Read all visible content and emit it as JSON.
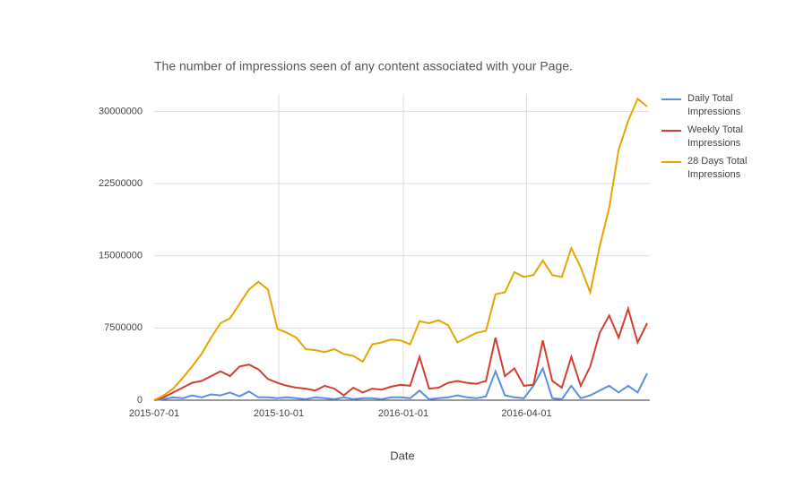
{
  "chart_data": {
    "type": "line",
    "title": "The number of impressions seen of any content associated with your Page.",
    "x_label": "Date",
    "x": [
      "2015-07-01",
      "2015-07-08",
      "2015-07-15",
      "2015-07-22",
      "2015-07-29",
      "2015-08-05",
      "2015-08-12",
      "2015-08-19",
      "2015-08-26",
      "2015-09-02",
      "2015-09-09",
      "2015-09-16",
      "2015-09-23",
      "2015-09-30",
      "2015-10-07",
      "2015-10-14",
      "2015-10-21",
      "2015-10-28",
      "2015-11-04",
      "2015-11-11",
      "2015-11-18",
      "2015-11-25",
      "2015-12-02",
      "2015-12-09",
      "2015-12-16",
      "2015-12-23",
      "2015-12-30",
      "2016-01-06",
      "2016-01-13",
      "2016-01-20",
      "2016-01-27",
      "2016-02-03",
      "2016-02-10",
      "2016-02-17",
      "2016-02-24",
      "2016-03-02",
      "2016-03-09",
      "2016-03-16",
      "2016-03-23",
      "2016-03-30",
      "2016-04-06",
      "2016-04-13",
      "2016-04-20",
      "2016-04-27",
      "2016-05-04",
      "2016-05-11",
      "2016-05-18",
      "2016-05-25",
      "2016-06-01",
      "2016-06-08",
      "2016-06-15",
      "2016-06-22",
      "2016-06-29"
    ],
    "xlim": [
      "2015-07-01",
      "2016-07-01"
    ],
    "xticks": [
      "2015-07-01",
      "2015-10-01",
      "2016-01-01",
      "2016-04-01"
    ],
    "ylim": [
      0,
      31800000
    ],
    "yticks": [
      0,
      7500000,
      15000000,
      22500000,
      30000000
    ],
    "grid": true,
    "legend": "right",
    "series": [
      {
        "name": "Daily Total Impressions",
        "color": "#5b8fe6",
        "values": [
          0,
          100000,
          300000,
          200000,
          500000,
          300000,
          600000,
          500000,
          800000,
          400000,
          900000,
          300000,
          300000,
          200000,
          300000,
          200000,
          100000,
          300000,
          200000,
          100000,
          300000,
          100000,
          200000,
          200000,
          100000,
          300000,
          300000,
          200000,
          1000000,
          100000,
          200000,
          300000,
          500000,
          300000,
          200000,
          400000,
          3000000,
          500000,
          300000,
          200000,
          1500000,
          3300000,
          200000,
          100000,
          1500000,
          200000,
          500000,
          1000000,
          1500000,
          800000,
          1500000,
          800000,
          2800000
        ]
      },
      {
        "name": "Weekly Total Impressions",
        "color": "#d23f31",
        "values": [
          0,
          300000,
          800000,
          1300000,
          1800000,
          2000000,
          2500000,
          3000000,
          2500000,
          3500000,
          3700000,
          3200000,
          2200000,
          1800000,
          1500000,
          1300000,
          1200000,
          1000000,
          1500000,
          1200000,
          500000,
          1300000,
          800000,
          1200000,
          1100000,
          1400000,
          1600000,
          1500000,
          4500000,
          1200000,
          1300000,
          1800000,
          2000000,
          1800000,
          1700000,
          2000000,
          6500000,
          2500000,
          3300000,
          1500000,
          1600000,
          6200000,
          2000000,
          1300000,
          4500000,
          1500000,
          3500000,
          7000000,
          8800000,
          6500000,
          9500000,
          6000000,
          8000000
        ]
      },
      {
        "name": "28 Days Total Impressions",
        "color": "#e8a500",
        "values": [
          0,
          500000,
          1200000,
          2300000,
          3500000,
          4800000,
          6500000,
          8000000,
          8500000,
          10000000,
          11500000,
          12300000,
          11500000,
          7400000,
          7000000,
          6500000,
          5300000,
          5200000,
          5000000,
          5300000,
          4800000,
          4600000,
          4000000,
          5800000,
          6000000,
          6300000,
          6200000,
          5800000,
          8200000,
          8000000,
          8300000,
          7800000,
          6000000,
          6500000,
          7000000,
          7200000,
          11000000,
          11200000,
          13300000,
          12800000,
          13000000,
          14500000,
          13000000,
          12800000,
          15800000,
          13800000,
          11200000,
          16000000,
          20000000,
          26000000,
          29000000,
          31300000,
          30500000
        ]
      }
    ]
  }
}
